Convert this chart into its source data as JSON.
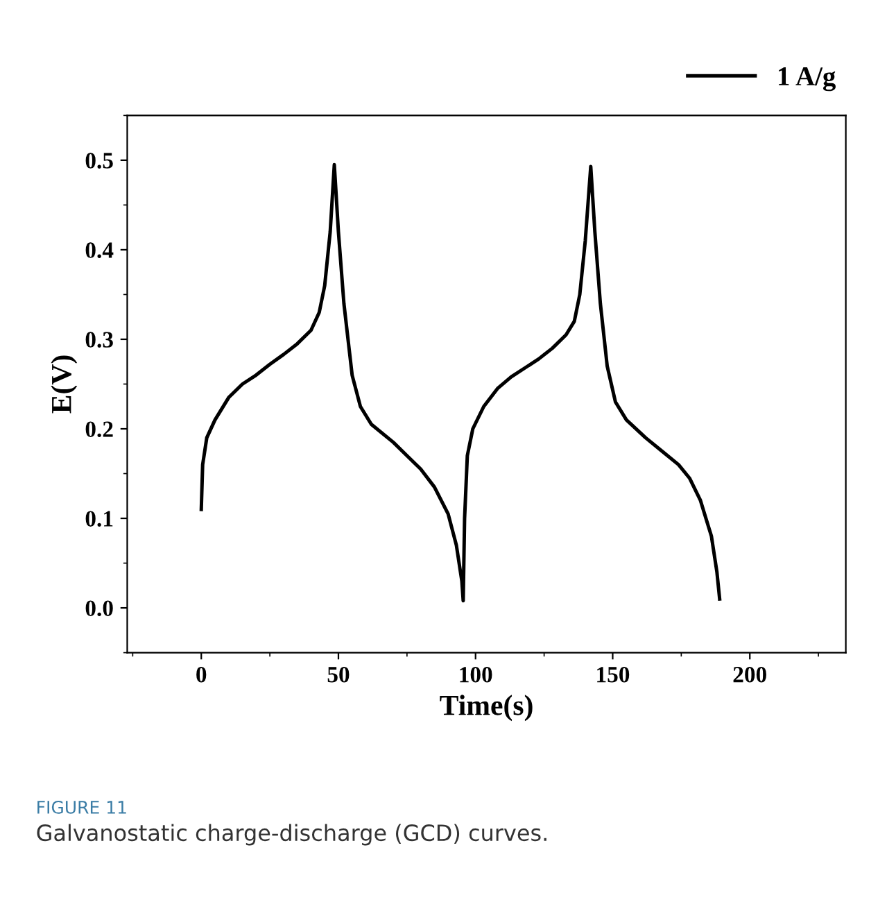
{
  "chart_data": {
    "type": "line",
    "xlabel": "Time(s)",
    "ylabel": "E(V)",
    "xlim": [
      -27,
      235
    ],
    "ylim": [
      -0.05,
      0.55
    ],
    "xticks": [
      0,
      50,
      100,
      150,
      200
    ],
    "yticks": [
      {
        "value": 0,
        "label": "0.0"
      },
      0.1,
      0.2,
      0.3,
      0.4,
      0.5
    ],
    "legend": "top right",
    "grid": false,
    "marker": "none",
    "line_style": "solid",
    "annotations": [
      "FIGURE 11",
      "Galvanostatic charge-discharge (GCD) curves."
    ],
    "series": [
      {
        "name": "1 A/g",
        "color": "#000000",
        "x": [
          0,
          0.5,
          2,
          5,
          10,
          15,
          20,
          25,
          30,
          35,
          40,
          43,
          45,
          47,
          48.5,
          50,
          52,
          55,
          58,
          62,
          70,
          75,
          80,
          85,
          90,
          93,
          95,
          95.5,
          96,
          97,
          99,
          103,
          108,
          113,
          118,
          123,
          128,
          133,
          136,
          138,
          140,
          142,
          143.5,
          145.5,
          148,
          151,
          155,
          162,
          168,
          174,
          178,
          182,
          186,
          188,
          189
        ],
        "values": [
          0.11,
          0.16,
          0.19,
          0.21,
          0.235,
          0.25,
          0.26,
          0.272,
          0.283,
          0.295,
          0.31,
          0.33,
          0.36,
          0.42,
          0.495,
          0.42,
          0.34,
          0.26,
          0.225,
          0.205,
          0.185,
          0.17,
          0.155,
          0.135,
          0.105,
          0.07,
          0.03,
          0.008,
          0.1,
          0.17,
          0.2,
          0.225,
          0.245,
          0.258,
          0.268,
          0.278,
          0.29,
          0.305,
          0.32,
          0.35,
          0.41,
          0.493,
          0.42,
          0.34,
          0.27,
          0.23,
          0.21,
          0.19,
          0.175,
          0.16,
          0.145,
          0.12,
          0.08,
          0.04,
          0.01
        ]
      }
    ]
  }
}
